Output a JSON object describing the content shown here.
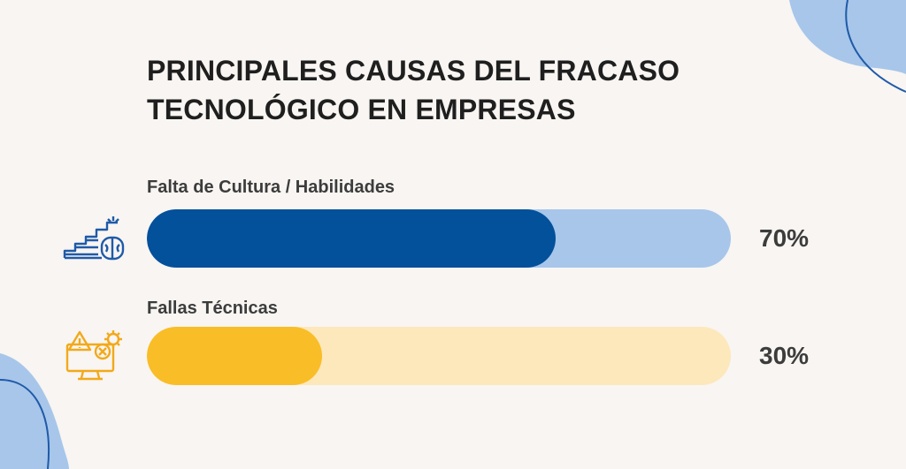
{
  "colors": {
    "background": "#f8f5f2",
    "blob": "#a7c6ea",
    "blob_line": "#1f5aa8",
    "blue_fill": "#03509b",
    "blue_track": "#a7c6ea",
    "yellow_fill": "#f9bd27",
    "yellow_track": "#fde8bc",
    "title": "#1f1f1f",
    "text": "#3c3c3c"
  },
  "chart_data": {
    "type": "bar",
    "orientation": "horizontal",
    "title": "PRINCIPALES CAUSAS DEL FRACASO TECNOLÓGICO EN EMPRESAS",
    "title_lines": [
      "PRINCIPALES CAUSAS DEL FRACASO",
      "TECNOLÓGICO EN EMPRESAS"
    ],
    "categories": [
      "Falta de Cultura / Habilidades",
      "Fallas Técnicas"
    ],
    "values": [
      70,
      30
    ],
    "value_labels": [
      "70%",
      "30%"
    ],
    "xlim": [
      0,
      100
    ],
    "unit": "%",
    "icons": [
      "stairs-brain-icon",
      "warning-monitor-gear-icon"
    ],
    "grid": false,
    "legend": "none"
  }
}
